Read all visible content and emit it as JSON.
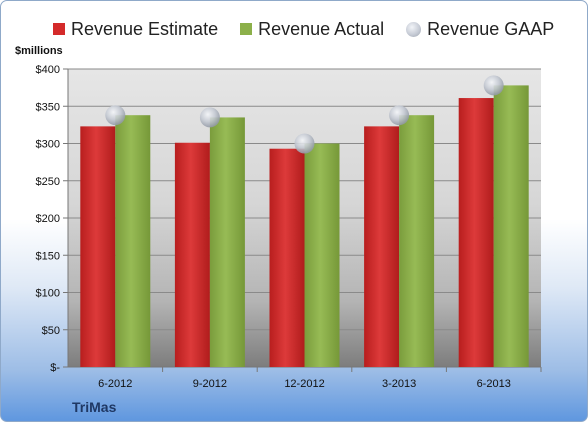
{
  "legend": {
    "estimate": "Revenue Estimate",
    "actual": "Revenue Actual",
    "gaap": "Revenue GAAP"
  },
  "unit_label": "$millions",
  "company": "TriMas",
  "colors": {
    "estimate": "#d42a2a",
    "actual": "#8cb04a",
    "gaap": "#c3c8d1"
  },
  "chart_data": {
    "type": "bar",
    "categories": [
      "6-2012",
      "9-2012",
      "12-2012",
      "3-2013",
      "6-2013"
    ],
    "series": [
      {
        "name": "Revenue Estimate",
        "values": [
          323,
          301,
          293,
          323,
          361
        ]
      },
      {
        "name": "Revenue Actual",
        "values": [
          338,
          335,
          300,
          338,
          378
        ]
      },
      {
        "name": "Revenue GAAP",
        "values": [
          338,
          335,
          300,
          338,
          378
        ],
        "marker": "circle"
      }
    ],
    "y_ticks": [
      "$-",
      "$50",
      "$100",
      "$150",
      "$200",
      "$250",
      "$300",
      "$350",
      "$400"
    ],
    "ylim": [
      0,
      400
    ],
    "ylabel": "$millions",
    "grid": true,
    "legend_position": "top"
  }
}
